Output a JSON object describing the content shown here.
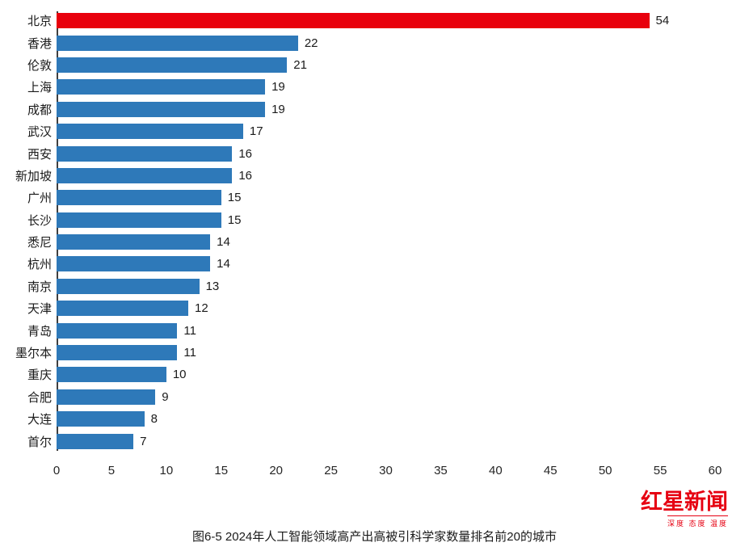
{
  "chart_data": {
    "type": "bar",
    "orientation": "horizontal",
    "title": "图6-5 2024年人工智能领域高产出高被引科学家数量排名前20的城市",
    "categories": [
      "北京",
      "香港",
      "伦敦",
      "上海",
      "成都",
      "武汉",
      "西安",
      "新加坡",
      "广州",
      "长沙",
      "悉尼",
      "杭州",
      "南京",
      "天津",
      "青岛",
      "墨尔本",
      "重庆",
      "合肥",
      "大连",
      "首尔"
    ],
    "values": [
      54,
      22,
      21,
      19,
      19,
      17,
      16,
      16,
      15,
      15,
      14,
      14,
      13,
      12,
      11,
      11,
      10,
      9,
      8,
      7
    ],
    "xlim": [
      0,
      60
    ],
    "xticks": [
      0,
      5,
      10,
      15,
      20,
      25,
      30,
      35,
      40,
      45,
      50,
      55,
      60
    ],
    "grid": false,
    "legend": "none",
    "bar_color": "#2e79b9",
    "highlight_color": "#e8000d",
    "highlight_index": 0
  },
  "logo": {
    "name": "红星新闻",
    "tagline": "深度 态度 温度",
    "color": "#e60012"
  }
}
